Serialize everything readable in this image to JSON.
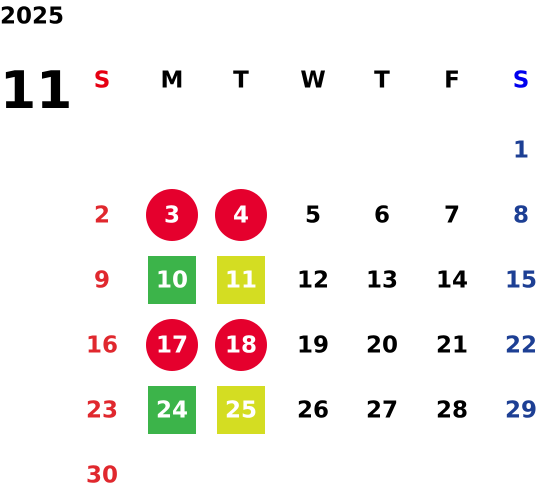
{
  "year": "2025",
  "month": "11",
  "weekdays": [
    "S",
    "M",
    "T",
    "W",
    "T",
    "F",
    "S"
  ],
  "header_colors": [
    "#e60012",
    "#000000",
    "#000000",
    "#000000",
    "#000000",
    "#000000",
    "#0000ee"
  ],
  "day_colors": [
    "#e0282e",
    "#000000",
    "#000000",
    "#000000",
    "#000000",
    "#000000",
    "#1d3f94"
  ],
  "weeks": [
    [
      null,
      null,
      null,
      null,
      null,
      null,
      1
    ],
    [
      2,
      {
        "value": 3,
        "shape": "circle",
        "color": "#e5002d"
      },
      {
        "value": 4,
        "shape": "circle",
        "color": "#e5002d"
      },
      5,
      6,
      7,
      8
    ],
    [
      9,
      {
        "value": 10,
        "shape": "square",
        "color": "#3cb44a"
      },
      {
        "value": 11,
        "shape": "square",
        "color": "#d4dd22"
      },
      12,
      13,
      14,
      15
    ],
    [
      16,
      {
        "value": 17,
        "shape": "circle",
        "color": "#e5002d"
      },
      {
        "value": 18,
        "shape": "circle",
        "color": "#e5002d"
      },
      19,
      20,
      21,
      22
    ],
    [
      23,
      {
        "value": 24,
        "shape": "square",
        "color": "#3cb44a"
      },
      {
        "value": 25,
        "shape": "square",
        "color": "#d4dd22"
      },
      26,
      27,
      28,
      29
    ],
    [
      30,
      null,
      null,
      null,
      null,
      null,
      null
    ]
  ]
}
